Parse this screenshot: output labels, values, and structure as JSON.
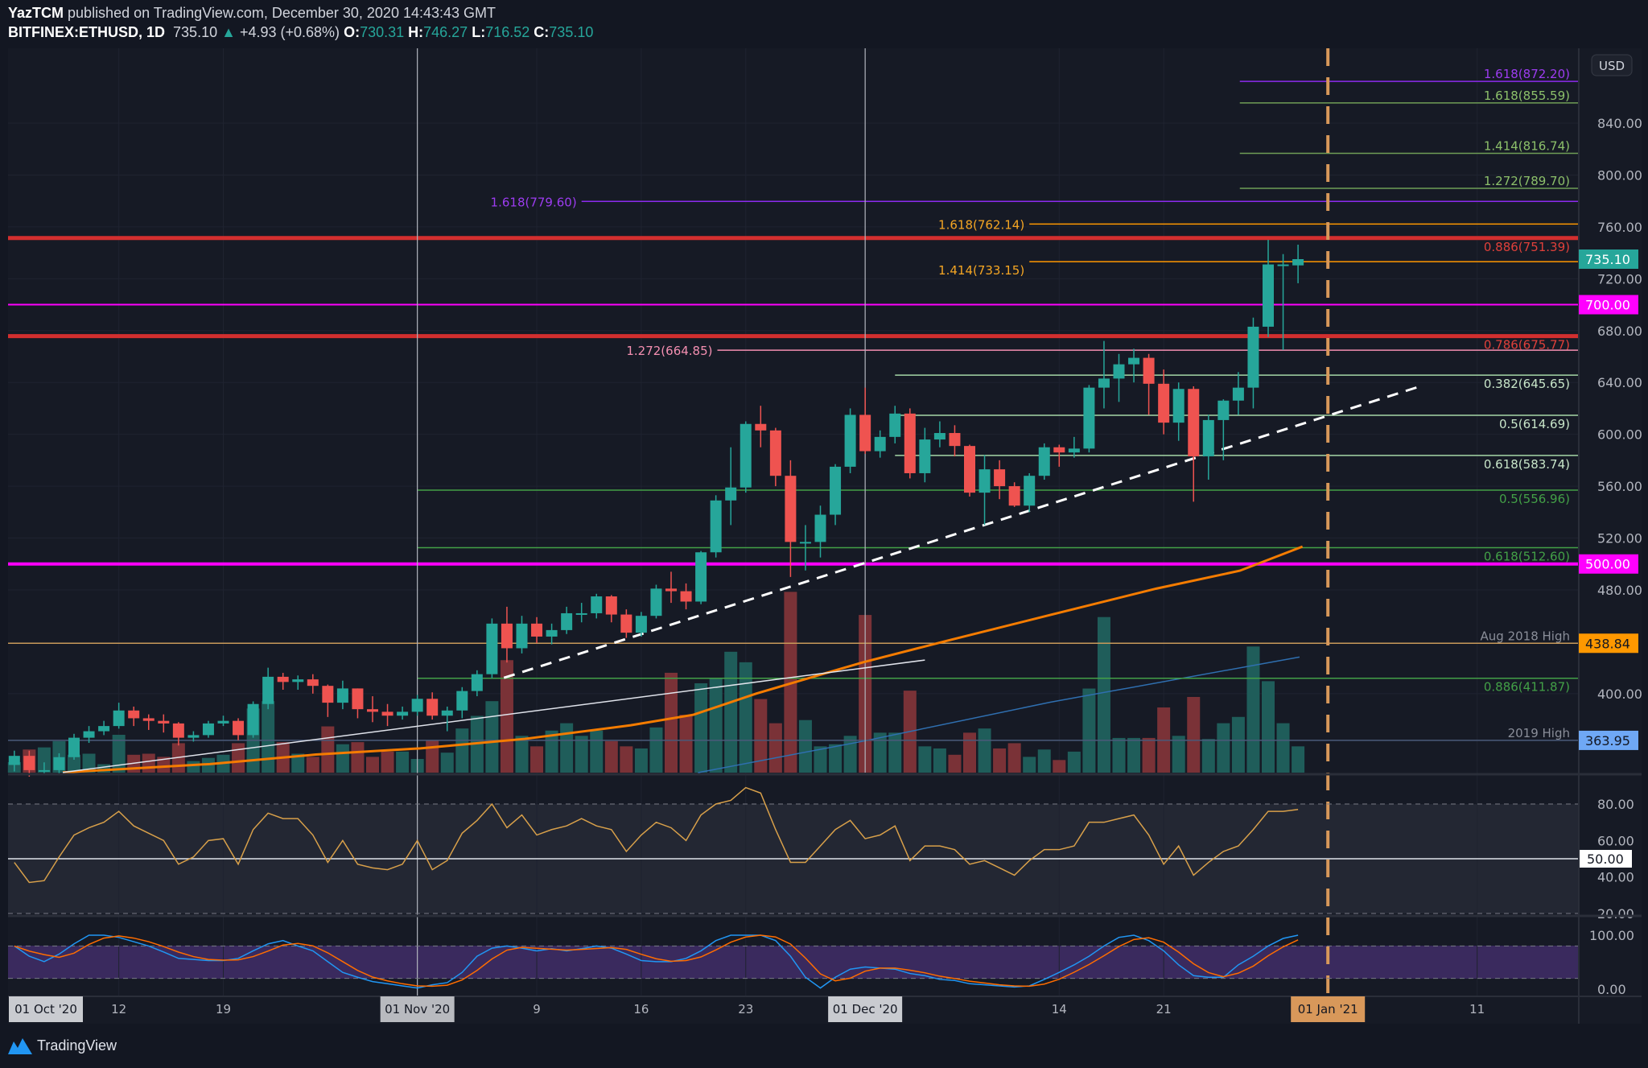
{
  "header": {
    "author": "YazTCM",
    "published": "published on TradingView.com, December 30, 2020 14:43:43 GMT",
    "symbol": "BITFINEX:ETHUSD, 1D",
    "last": "735.10",
    "change": "+4.93 (+0.68%)",
    "o_label": "O:",
    "o": "730.31",
    "h_label": "H:",
    "h": "746.27",
    "l_label": "L:",
    "l": "716.52",
    "c_label": "C:",
    "c": "735.10"
  },
  "currency_button": "USD",
  "brand": "TradingView",
  "colors": {
    "up": "#26a69a",
    "down": "#ef5350",
    "bg": "#131722",
    "pane": "#161a25"
  },
  "chart_data": {
    "type": "candlestick",
    "symbol": "BITFINEX:ETHUSD",
    "interval": "1D",
    "first_date": "2020-10-05",
    "ohlc": [
      [
        345,
        356,
        340,
        352
      ],
      [
        352,
        356,
        336,
        341
      ],
      [
        341,
        347,
        338,
        341
      ],
      [
        341,
        354,
        338,
        351
      ],
      [
        351,
        369,
        349,
        366
      ],
      [
        366,
        375,
        362,
        371
      ],
      [
        371,
        379,
        368,
        375
      ],
      [
        375,
        393,
        373,
        387
      ],
      [
        387,
        390,
        375,
        381
      ],
      [
        381,
        384,
        372,
        379
      ],
      [
        379,
        384,
        370,
        377
      ],
      [
        377,
        378,
        360,
        366
      ],
      [
        366,
        371,
        363,
        368
      ],
      [
        368,
        379,
        366,
        377
      ],
      [
        377,
        383,
        375,
        379
      ],
      [
        379,
        381,
        364,
        368
      ],
      [
        368,
        394,
        366,
        392
      ],
      [
        392,
        420,
        388,
        413
      ],
      [
        413,
        416,
        403,
        409
      ],
      [
        409,
        414,
        403,
        411
      ],
      [
        411,
        415,
        400,
        406
      ],
      [
        406,
        407,
        382,
        393
      ],
      [
        393,
        410,
        388,
        404
      ],
      [
        404,
        404,
        381,
        388
      ],
      [
        388,
        398,
        378,
        386
      ],
      [
        386,
        392,
        375,
        383
      ],
      [
        383,
        390,
        380,
        386
      ],
      [
        386,
        399,
        383,
        396
      ],
      [
        396,
        401,
        380,
        383
      ],
      [
        383,
        390,
        371,
        387
      ],
      [
        387,
        405,
        381,
        402
      ],
      [
        402,
        418,
        398,
        415
      ],
      [
        415,
        458,
        412,
        454
      ],
      [
        454,
        467,
        424,
        435
      ],
      [
        435,
        460,
        431,
        454
      ],
      [
        454,
        459,
        439,
        444
      ],
      [
        444,
        454,
        438,
        449
      ],
      [
        449,
        467,
        446,
        462
      ],
      [
        462,
        470,
        455,
        462
      ],
      [
        462,
        477,
        458,
        475
      ],
      [
        475,
        476,
        455,
        461
      ],
      [
        461,
        465,
        443,
        447
      ],
      [
        447,
        463,
        444,
        460
      ],
      [
        460,
        484,
        458,
        481
      ],
      [
        481,
        494,
        470,
        479
      ],
      [
        479,
        485,
        465,
        471
      ],
      [
        471,
        510,
        469,
        509
      ],
      [
        509,
        553,
        505,
        549
      ],
      [
        549,
        590,
        530,
        559
      ],
      [
        559,
        610,
        555,
        608
      ],
      [
        608,
        622,
        590,
        603
      ],
      [
        603,
        605,
        560,
        568
      ],
      [
        568,
        580,
        490,
        517
      ],
      [
        517,
        530,
        495,
        517
      ],
      [
        517,
        545,
        505,
        538
      ],
      [
        538,
        577,
        530,
        575
      ],
      [
        575,
        620,
        570,
        615
      ],
      [
        615,
        636,
        585,
        587
      ],
      [
        587,
        603,
        582,
        598
      ],
      [
        598,
        622,
        593,
        616
      ],
      [
        616,
        620,
        566,
        570
      ],
      [
        570,
        605,
        563,
        596
      ],
      [
        596,
        610,
        590,
        601
      ],
      [
        601,
        607,
        583,
        591
      ],
      [
        591,
        592,
        552,
        555
      ],
      [
        555,
        584,
        530,
        573
      ],
      [
        573,
        580,
        550,
        560
      ],
      [
        560,
        563,
        544,
        545
      ],
      [
        545,
        570,
        540,
        568
      ],
      [
        568,
        593,
        565,
        590
      ],
      [
        590,
        592,
        575,
        586
      ],
      [
        586,
        598,
        582,
        589
      ],
      [
        589,
        638,
        586,
        636
      ],
      [
        636,
        672,
        620,
        643
      ],
      [
        643,
        662,
        625,
        654
      ],
      [
        654,
        666,
        640,
        659
      ],
      [
        659,
        662,
        615,
        639
      ],
      [
        639,
        650,
        600,
        609
      ],
      [
        609,
        640,
        595,
        635
      ],
      [
        635,
        637,
        548,
        583
      ],
      [
        583,
        615,
        565,
        611
      ],
      [
        611,
        627,
        580,
        626
      ],
      [
        626,
        648,
        615,
        636
      ],
      [
        636,
        690,
        620,
        683
      ],
      [
        683,
        750,
        675,
        731
      ],
      [
        730.5,
        739,
        665,
        731
      ],
      [
        730.31,
        746.27,
        716.52,
        735.1
      ]
    ],
    "volume": [
      10,
      22,
      24,
      30,
      17,
      18,
      8,
      36,
      17,
      18,
      15,
      28,
      11,
      14,
      17,
      28,
      61,
      68,
      29,
      18,
      15,
      44,
      27,
      29,
      15,
      20,
      20,
      13,
      31,
      19,
      42,
      54,
      68,
      107,
      35,
      25,
      40,
      47,
      35,
      40,
      30,
      25,
      23,
      43,
      95,
      55,
      85,
      90,
      115,
      105,
      70,
      47,
      172,
      50,
      25,
      27,
      35,
      150,
      38,
      38,
      78,
      25,
      23,
      17,
      38,
      42,
      23,
      28,
      15,
      22,
      12,
      20,
      80,
      148,
      33,
      33,
      33,
      62,
      35,
      72,
      32,
      47,
      53,
      120,
      87,
      47,
      25
    ],
    "volume_ma": [
      [
        45.8,
        0
      ],
      [
        56.9,
        30
      ],
      [
        69.4,
        67
      ],
      [
        86.1,
        110
      ]
    ],
    "ma_line": [
      [
        3.25,
        339.2
      ],
      [
        13.1,
        345.7
      ],
      [
        20.2,
        353
      ],
      [
        27.2,
        357.8
      ],
      [
        34.2,
        365.1
      ],
      [
        41.3,
        375.6
      ],
      [
        45.5,
        383.7
      ],
      [
        49.7,
        400
      ],
      [
        54,
        414.6
      ],
      [
        56.9,
        424.3
      ],
      [
        62.4,
        440.5
      ],
      [
        69.4,
        460.7
      ],
      [
        76.5,
        481
      ],
      [
        82.1,
        494.8
      ],
      [
        86.3,
        513.4
      ]
    ],
    "trendline_solid": [
      [
        3.25,
        339.2
      ],
      [
        61,
        425.9
      ]
    ],
    "trendline_dashed": [
      [
        32.8,
        412.2
      ],
      [
        94.1,
        636.7
      ]
    ],
    "price_axis": {
      "ticks": [
        840,
        800,
        760,
        720,
        680,
        640,
        600,
        560,
        520,
        480,
        400
      ],
      "range": [
        340,
        890
      ]
    },
    "price_tags": [
      {
        "value": "735.10",
        "price": 735.1,
        "bg": "#26a69a",
        "fg": "#ffffff"
      },
      {
        "value": "700.00",
        "price": 700,
        "bg": "#ff00ff",
        "fg": "#ffffff"
      },
      {
        "value": "500.00",
        "price": 500,
        "bg": "#ff00ff",
        "fg": "#ffffff"
      },
      {
        "value": "438.84",
        "price": 438.84,
        "bg": "#ff9800",
        "fg": "#131722"
      },
      {
        "value": "363.95",
        "price": 363.95,
        "bg": "#6fa8f5",
        "fg": "#131722"
      }
    ],
    "levels": [
      {
        "price": 872.2,
        "color": "#8c2bee",
        "width": 1.5,
        "from": 82.1,
        "label": "1.618(872.20)",
        "side": "right",
        "pos": "above",
        "lc": "#9c3cf0"
      },
      {
        "price": 855.59,
        "color": "#6f9e56",
        "width": 1.5,
        "from": 82.1,
        "label": "1.618(855.59)",
        "side": "right",
        "pos": "above",
        "lc": "#8cc06a"
      },
      {
        "price": 816.74,
        "color": "#6f9e56",
        "width": 1.5,
        "from": 82.1,
        "label": "1.414(816.74)",
        "side": "right",
        "pos": "above",
        "lc": "#8cc06a"
      },
      {
        "price": 789.7,
        "color": "#6f9e56",
        "width": 1.5,
        "from": 82.1,
        "label": "1.272(789.70)",
        "side": "right",
        "pos": "above",
        "lc": "#8cc06a"
      },
      {
        "price": 779.6,
        "color": "#8c2bee",
        "width": 1.5,
        "from": 38,
        "label": "1.618(779.60)",
        "side": "left",
        "pos": "center",
        "lc": "#9c3cf0"
      },
      {
        "price": 762.14,
        "color": "#ff9800",
        "width": 1.5,
        "from": 68,
        "label": "1.618(762.14)",
        "side": "left",
        "pos": "center",
        "lc": "#f5a623"
      },
      {
        "price": 751.39,
        "color": "#d32f2f",
        "width": 5,
        "from": -1,
        "label": "0.886(751.39)",
        "side": "right",
        "pos": "below",
        "lc": "#e0403a"
      },
      {
        "price": 733.15,
        "color": "#ff9800",
        "width": 1.5,
        "from": 68,
        "label": "1.414(733.15)",
        "side": "left",
        "pos": "below",
        "lc": "#f5a623"
      },
      {
        "price": 700,
        "color": "#ff00ff",
        "width": 2,
        "from": -1,
        "label": "",
        "side": "right",
        "pos": "above",
        "lc": "#ff00ff"
      },
      {
        "price": 675.77,
        "color": "#d32f2f",
        "width": 5,
        "from": -1,
        "label": "0.786(675.77)",
        "side": "right",
        "pos": "below",
        "lc": "#e0403a"
      },
      {
        "price": 664.85,
        "color": "#f48fb1",
        "width": 1.5,
        "from": 47.1,
        "label": "1.272(664.85)",
        "side": "left",
        "pos": "center",
        "lc": "#f48fb1"
      },
      {
        "price": 645.65,
        "color": "#a5d6a7",
        "width": 1.5,
        "from": 59,
        "label": "0.382(645.65)",
        "side": "right",
        "pos": "below",
        "lc": "#c8e6c9"
      },
      {
        "price": 614.69,
        "color": "#a5d6a7",
        "width": 1.5,
        "from": 59,
        "label": "0.5(614.69)",
        "side": "right",
        "pos": "below",
        "lc": "#c8e6c9"
      },
      {
        "price": 583.74,
        "color": "#a5d6a7",
        "width": 1.5,
        "from": 59,
        "label": "0.618(583.74)",
        "side": "right",
        "pos": "below",
        "lc": "#c8e6c9"
      },
      {
        "price": 556.96,
        "color": "#43a047",
        "width": 1.5,
        "from": 27,
        "label": "0.5(556.96)",
        "side": "right",
        "pos": "below",
        "lc": "#43a047"
      },
      {
        "price": 512.6,
        "color": "#43a047",
        "width": 1.5,
        "from": 27,
        "label": "0.618(512.60)",
        "side": "right",
        "pos": "below",
        "lc": "#43a047"
      },
      {
        "price": 500,
        "color": "#ff00ff",
        "width": 4,
        "from": -1,
        "label": "",
        "side": "right",
        "pos": "above",
        "lc": "#ff00ff"
      },
      {
        "price": 438.84,
        "color": "#c89a5a",
        "width": 1.5,
        "from": -1,
        "label": "Aug 2018 High",
        "side": "right",
        "pos": "above",
        "lc": "#8a8e99"
      },
      {
        "price": 411.87,
        "color": "#43a047",
        "width": 1.5,
        "from": 27,
        "label": "0.886(411.87)",
        "side": "right",
        "pos": "below",
        "lc": "#43a047"
      },
      {
        "price": 363.95,
        "color": "#4a5a7a",
        "width": 1.5,
        "from": -1,
        "label": "2019 High",
        "side": "right",
        "pos": "above",
        "lc": "#8a8e99"
      }
    ],
    "time_axis": [
      {
        "label": "01 Oct '20",
        "index": -4,
        "boxed": true,
        "bg": "#c9cbd0"
      },
      {
        "label": "12",
        "index": 7
      },
      {
        "label": "19",
        "index": 14
      },
      {
        "label": "01 Nov '20",
        "index": 27,
        "boxed": true,
        "bg": "#b8babf"
      },
      {
        "label": "9",
        "index": 35
      },
      {
        "label": "16",
        "index": 42
      },
      {
        "label": "23",
        "index": 49
      },
      {
        "label": "01 Dec '20",
        "index": 57,
        "boxed": true,
        "bg": "#c9cbd0"
      },
      {
        "label": "14",
        "index": 70
      },
      {
        "label": "21",
        "index": 77
      },
      {
        "label": "01 Jan '21",
        "index": 88,
        "boxed": true,
        "bg": "#d8985a"
      },
      {
        "label": "11",
        "index": 98
      }
    ],
    "rsi": {
      "values": [
        48,
        37,
        38,
        51,
        63,
        67,
        70,
        76,
        68,
        64,
        60,
        47,
        51,
        60,
        61,
        47,
        66,
        75,
        72,
        72,
        63,
        48,
        60,
        47,
        45,
        44,
        47,
        60,
        44,
        49,
        64,
        71,
        80,
        67,
        74,
        63,
        66,
        68,
        72,
        68,
        66,
        54,
        63,
        70,
        67,
        60,
        74,
        80,
        82,
        89,
        86,
        66,
        48,
        48,
        57,
        66,
        71,
        61,
        63,
        68,
        49,
        57,
        57,
        55,
        47,
        49,
        45,
        41,
        49,
        55,
        55,
        57,
        70,
        70,
        72,
        74,
        63,
        47,
        57,
        41,
        48,
        54,
        57,
        66,
        76,
        76,
        77
      ],
      "ticks": [
        "80.00",
        "60.00",
        "40.00",
        "20.00"
      ],
      "mid_tag": "50.00",
      "bands": [
        20,
        80
      ]
    },
    "stoch_rsi": {
      "k": [
        80,
        61,
        51,
        65,
        84,
        100,
        100,
        96,
        88,
        80,
        69,
        57,
        55,
        53,
        53,
        57,
        71,
        84,
        90,
        80,
        71,
        51,
        31,
        22,
        14,
        10,
        6,
        2,
        8,
        12,
        31,
        61,
        76,
        80,
        76,
        71,
        75,
        71,
        75,
        80,
        76,
        65,
        53,
        51,
        51,
        57,
        71,
        90,
        100,
        100,
        100,
        90,
        61,
        22,
        2,
        22,
        37,
        41,
        39,
        37,
        29,
        25,
        18,
        16,
        10,
        8,
        6,
        4,
        6,
        18,
        31,
        45,
        61,
        80,
        96,
        100,
        90,
        71,
        45,
        25,
        22,
        22,
        45,
        61,
        80,
        94,
        100
      ],
      "ticks": [
        "100.00",
        "0.00"
      ],
      "bands": [
        20,
        80
      ]
    }
  }
}
